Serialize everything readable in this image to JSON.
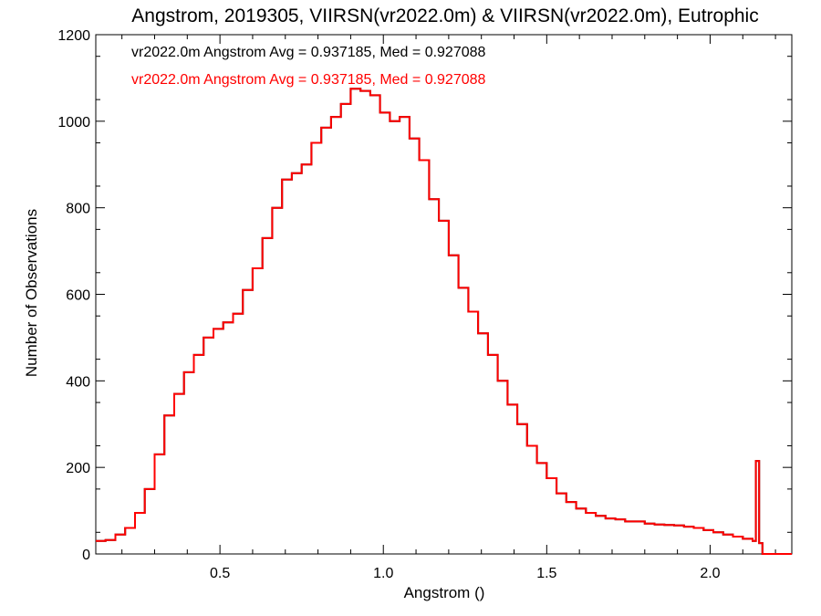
{
  "chart_data": {
    "type": "line",
    "title": "Angstrom, 2019305, VIIRSN(vr2022.0m) & VIIRSN(vr2022.0m), Eutrophic",
    "xlabel": "Angstrom ()",
    "ylabel": "Number of Observations",
    "xlim": [
      0.12,
      2.25
    ],
    "ylim": [
      0,
      1200
    ],
    "xticks": [
      0.5,
      1.0,
      1.5,
      2.0
    ],
    "xtick_labels": [
      "0.5",
      "1.0",
      "1.5",
      "2.0"
    ],
    "yticks": [
      0,
      200,
      400,
      600,
      800,
      1000,
      1200
    ],
    "ytick_labels": [
      "0",
      "200",
      "400",
      "600",
      "800",
      "1000",
      "1200"
    ],
    "grid": false,
    "legend_position": "top-left",
    "series": [
      {
        "name": "vr2022.0m Angstrom Avg = 0.937185, Med = 0.927088",
        "color": "#000000",
        "x": [
          0.12,
          0.15,
          0.18,
          0.21,
          0.24,
          0.27,
          0.3,
          0.33,
          0.36,
          0.39,
          0.42,
          0.45,
          0.48,
          0.51,
          0.54,
          0.57,
          0.6,
          0.63,
          0.66,
          0.69,
          0.72,
          0.75,
          0.78,
          0.81,
          0.84,
          0.87,
          0.9,
          0.93,
          0.96,
          0.99,
          1.02,
          1.05,
          1.08,
          1.11,
          1.14,
          1.17,
          1.2,
          1.23,
          1.26,
          1.29,
          1.32,
          1.35,
          1.38,
          1.41,
          1.44,
          1.47,
          1.5,
          1.53,
          1.56,
          1.59,
          1.62,
          1.65,
          1.68,
          1.71,
          1.74,
          1.77,
          1.8,
          1.83,
          1.86,
          1.89,
          1.92,
          1.95,
          1.98,
          2.01,
          2.04,
          2.07,
          2.1,
          2.13,
          2.14,
          2.15,
          2.16,
          2.19,
          2.22,
          2.25
        ],
        "y": [
          30,
          32,
          45,
          60,
          95,
          150,
          230,
          320,
          370,
          420,
          460,
          500,
          520,
          535,
          555,
          610,
          660,
          730,
          800,
          865,
          880,
          900,
          950,
          985,
          1010,
          1040,
          1075,
          1070,
          1060,
          1020,
          1000,
          1010,
          960,
          910,
          820,
          770,
          690,
          615,
          560,
          510,
          460,
          400,
          345,
          300,
          250,
          210,
          175,
          140,
          120,
          105,
          95,
          88,
          82,
          80,
          75,
          75,
          70,
          68,
          67,
          66,
          63,
          60,
          55,
          50,
          45,
          40,
          35,
          30,
          215,
          25,
          0,
          0,
          0,
          0
        ]
      },
      {
        "name": "vr2022.0m Angstrom Avg = 0.937185, Med = 0.927088",
        "color": "#ff0000",
        "x": [
          0.12,
          0.15,
          0.18,
          0.21,
          0.24,
          0.27,
          0.3,
          0.33,
          0.36,
          0.39,
          0.42,
          0.45,
          0.48,
          0.51,
          0.54,
          0.57,
          0.6,
          0.63,
          0.66,
          0.69,
          0.72,
          0.75,
          0.78,
          0.81,
          0.84,
          0.87,
          0.9,
          0.93,
          0.96,
          0.99,
          1.02,
          1.05,
          1.08,
          1.11,
          1.14,
          1.17,
          1.2,
          1.23,
          1.26,
          1.29,
          1.32,
          1.35,
          1.38,
          1.41,
          1.44,
          1.47,
          1.5,
          1.53,
          1.56,
          1.59,
          1.62,
          1.65,
          1.68,
          1.71,
          1.74,
          1.77,
          1.8,
          1.83,
          1.86,
          1.89,
          1.92,
          1.95,
          1.98,
          2.01,
          2.04,
          2.07,
          2.1,
          2.13,
          2.14,
          2.15,
          2.16,
          2.19,
          2.22,
          2.25
        ],
        "y": [
          30,
          32,
          45,
          60,
          95,
          150,
          230,
          320,
          370,
          420,
          460,
          500,
          520,
          535,
          555,
          610,
          660,
          730,
          800,
          865,
          880,
          900,
          950,
          985,
          1010,
          1040,
          1075,
          1070,
          1060,
          1020,
          1000,
          1010,
          960,
          910,
          820,
          770,
          690,
          615,
          560,
          510,
          460,
          400,
          345,
          300,
          250,
          210,
          175,
          140,
          120,
          105,
          95,
          88,
          82,
          80,
          75,
          75,
          70,
          68,
          67,
          66,
          63,
          60,
          55,
          50,
          45,
          40,
          35,
          30,
          215,
          25,
          0,
          0,
          0,
          0
        ]
      }
    ]
  }
}
